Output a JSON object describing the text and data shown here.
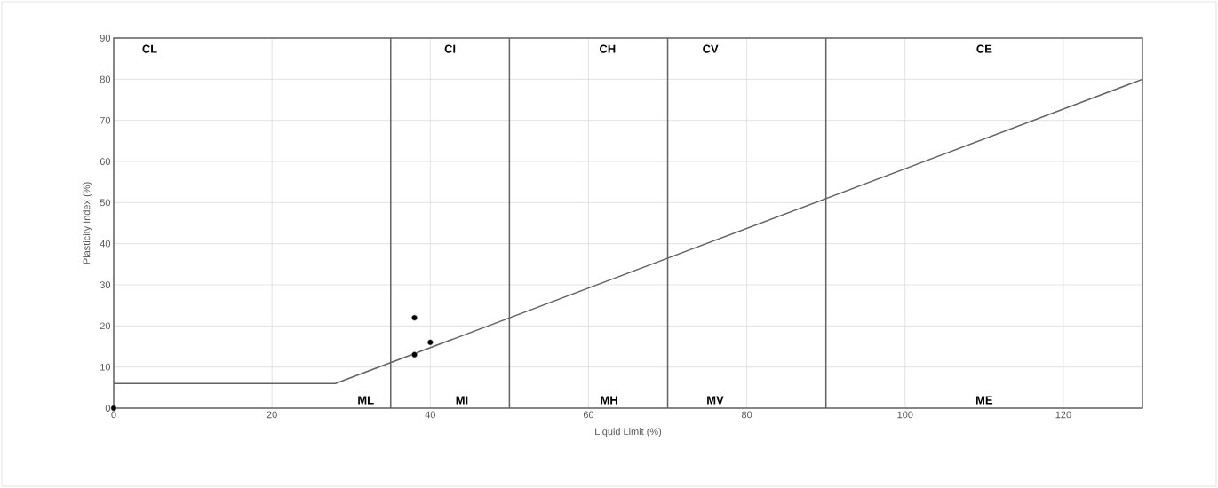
{
  "chart_data": {
    "type": "scatter",
    "xlabel": "Liquid Limit (%)",
    "ylabel": "Plasticity Index (%)",
    "xlim": [
      0,
      130
    ],
    "ylim": [
      0,
      90
    ],
    "xticks": [
      0,
      20,
      40,
      60,
      80,
      100,
      120
    ],
    "yticks": [
      0,
      10,
      20,
      30,
      40,
      50,
      60,
      70,
      80,
      90
    ],
    "grid": true,
    "marker": "circle",
    "series": [
      {
        "type": "line",
        "color": "#636363",
        "x": [
          0,
          28,
          130
        ],
        "values": [
          6,
          6,
          80
        ],
        "marker": "none"
      },
      {
        "color": "#000000",
        "x": [
          0,
          38,
          38,
          40
        ],
        "values": [
          0,
          22,
          13,
          16
        ]
      }
    ],
    "ref_lines": [
      {
        "axis": "x",
        "value": 35,
        "color": "#636363"
      },
      {
        "axis": "x",
        "value": 50,
        "color": "#636363"
      },
      {
        "axis": "x",
        "value": 70,
        "color": "#636363"
      },
      {
        "axis": "x",
        "value": 90,
        "color": "#636363"
      }
    ],
    "annotations": [
      "CL",
      "CI",
      "CH",
      "CV",
      "CE",
      "ML",
      "MI",
      "MH",
      "MV",
      "ME"
    ]
  }
}
